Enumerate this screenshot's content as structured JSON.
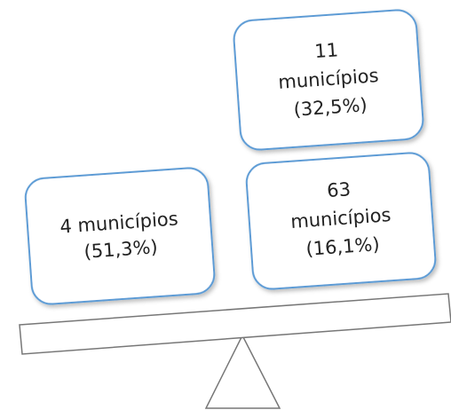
{
  "nodes": [
    {
      "lines": [
        "4 municípios",
        "(51,3%)"
      ]
    },
    {
      "lines": [
        "11",
        "municípios",
        "(32,5%)"
      ]
    },
    {
      "lines": [
        "63",
        "municípios",
        "(16,1%)"
      ]
    }
  ]
}
